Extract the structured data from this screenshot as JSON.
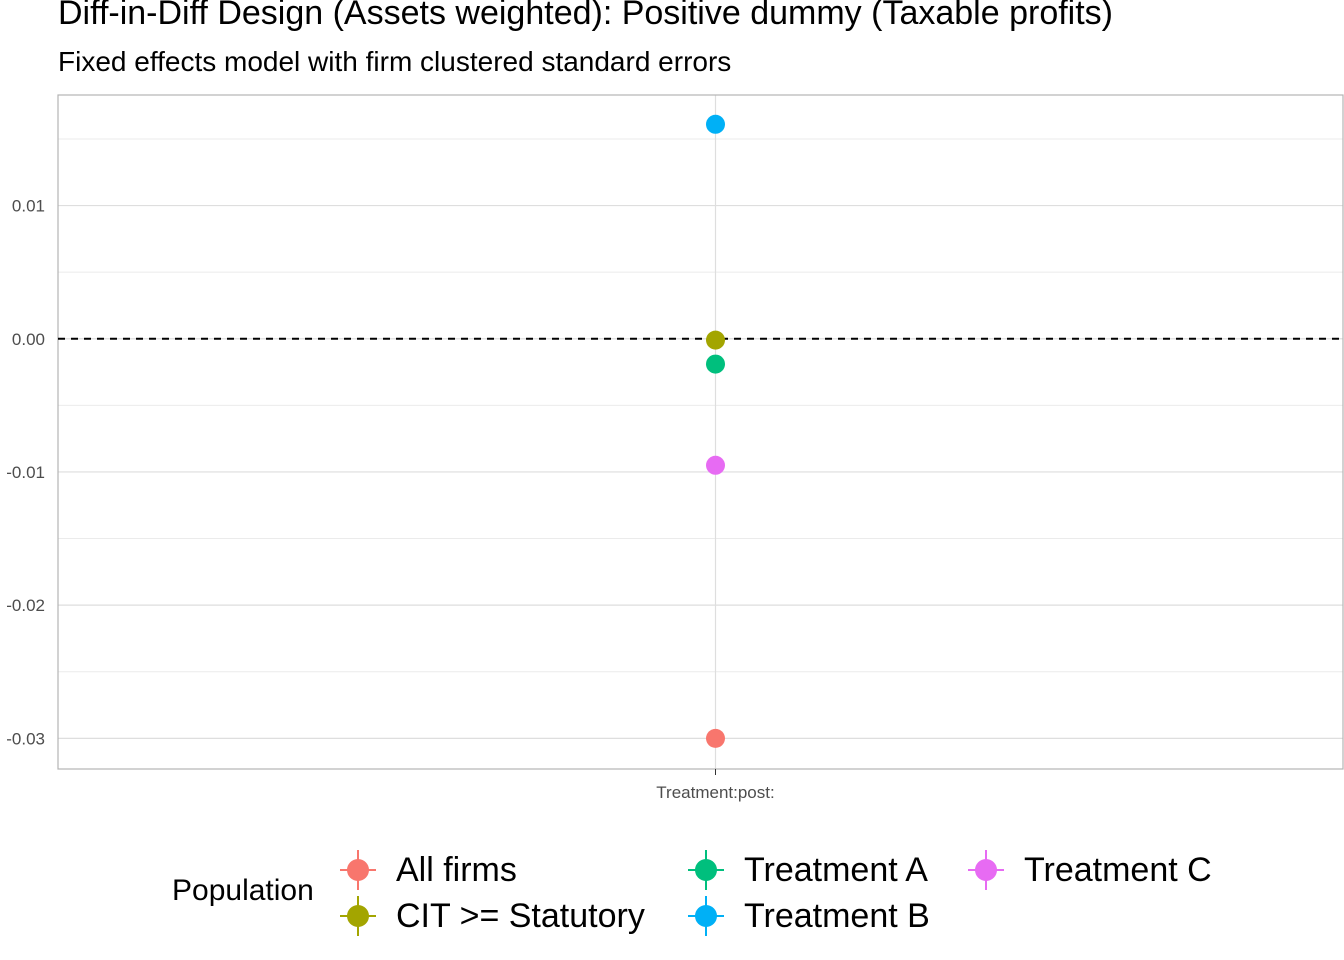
{
  "chart_data": {
    "type": "scatter",
    "title": "Diff-in-Diff Design (Assets weighted): Positive dummy (Taxable profits)",
    "subtitle": "Fixed effects model with firm clustered standard errors",
    "xlabel": "",
    "ylabel": "",
    "categories": [
      "Treatment:post:"
    ],
    "ylim": [
      -0.0323,
      0.0183
    ],
    "y_ticks": [
      0.01,
      0.0,
      -0.01,
      -0.02,
      -0.03
    ],
    "y_tick_labels": [
      "0.01",
      "0.00",
      "-0.01",
      "-0.02",
      "-0.03"
    ],
    "reference_line": 0,
    "grid": true,
    "legend_position": "bottom",
    "legend_title": "Population",
    "series": [
      {
        "name": "All firms",
        "values": [
          -0.03
        ],
        "color": "#F8766D"
      },
      {
        "name": "CIT >= Statutory",
        "values": [
          -0.0001
        ],
        "color": "#A3A500"
      },
      {
        "name": "Treatment A",
        "values": [
          -0.0019
        ],
        "color": "#00BF7D"
      },
      {
        "name": "Treatment B",
        "values": [
          0.0161
        ],
        "color": "#00B0F6"
      },
      {
        "name": "Treatment C",
        "values": [
          -0.0095
        ],
        "color": "#E76BF3"
      }
    ]
  }
}
